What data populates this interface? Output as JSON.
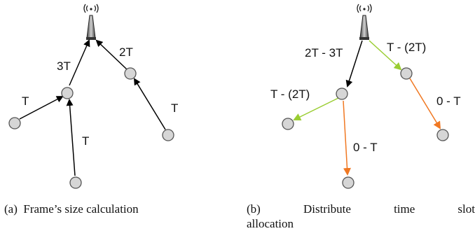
{
  "diagram_a": {
    "labels": {
      "root_to_left": "3T",
      "root_to_right": "2T",
      "leaf_left": "T",
      "leaf_bottom": "T",
      "leaf_right": "T"
    },
    "caption": {
      "tag": "(a)",
      "text": "Frame’s size calculation"
    }
  },
  "diagram_b": {
    "labels": {
      "root_to_left": "2T -  3T",
      "root_to_right": "T - (2T)",
      "left_to_leftleaf": "T - (2T)",
      "left_to_bottom": "0 - T",
      "right_to_leaf": "0 - T"
    },
    "caption": {
      "tag": "(b)",
      "words": [
        "Distribute",
        "time",
        "slot"
      ],
      "line2": "allocation"
    }
  },
  "colors": {
    "edge_black": "#000000",
    "edge_green": "#9acd32",
    "edge_orange": "#f07822",
    "node_fill": "#d6d6d6",
    "node_stroke": "#555555"
  },
  "icons": {
    "sink": "antenna-tower-icon"
  }
}
